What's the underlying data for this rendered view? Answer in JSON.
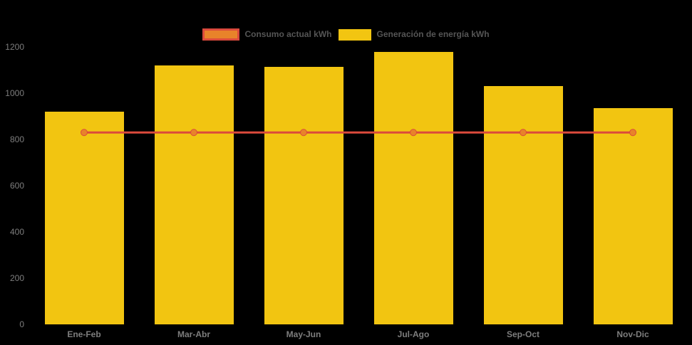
{
  "colors": {
    "background": "#000000",
    "bar_fill": "#F2C511",
    "line_stroke": "#DB4A3C",
    "marker_fill": "#E8832A",
    "legend_text": "#555555",
    "axis_text": "#7D7D7D"
  },
  "legend": {
    "items": [
      {
        "label": "Consumo actual kWh",
        "series_type": "line"
      },
      {
        "label": "Generación de energía kWh",
        "series_type": "bar"
      }
    ]
  },
  "chart_data": {
    "type": "bar",
    "subtype": "bar-line-combo",
    "categories": [
      "Ene-Feb",
      "Mar-Abr",
      "May-Jun",
      "Jul-Ago",
      "Sep-Oct",
      "Nov-Dic"
    ],
    "series": [
      {
        "name": "Generación de energía kWh",
        "type": "bar",
        "color": "#F2C511",
        "values": [
          920,
          1120,
          1115,
          1180,
          1030,
          935
        ]
      },
      {
        "name": "Consumo actual kWh",
        "type": "line",
        "color": "#DB4A3C",
        "marker_color": "#E8832A",
        "values": [
          830,
          830,
          830,
          830,
          830,
          830
        ]
      }
    ],
    "title": "",
    "xlabel": "",
    "ylabel": "",
    "ylim": [
      0,
      1200
    ],
    "yticks": [
      0,
      200,
      400,
      600,
      800,
      1000,
      1200
    ],
    "grid": false,
    "legend_position": "top-center"
  }
}
